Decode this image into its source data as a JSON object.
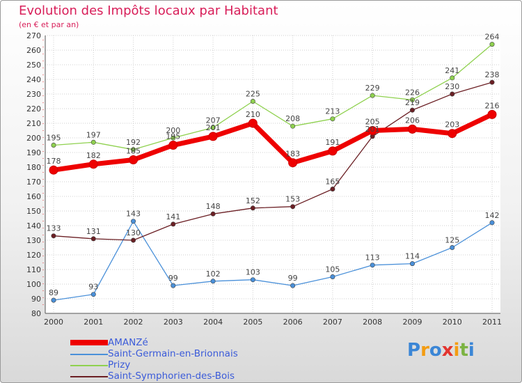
{
  "page": {
    "title": "Evolution des Impôts locaux par Habitant",
    "subtitle": "(en € et par an)"
  },
  "logo": {
    "text": "Proxiti",
    "colors": [
      "#3b86d6",
      "#f39c12",
      "#3b86d6",
      "#e3342f",
      "#f39c12",
      "#7cb342",
      "#3b86d6"
    ]
  },
  "chart_data": {
    "type": "line",
    "x": [
      "2000",
      "2001",
      "2002",
      "2003",
      "2004",
      "2005",
      "2006",
      "2007",
      "2008",
      "2009",
      "2010",
      "2011"
    ],
    "ylim": [
      80,
      270
    ],
    "yticks": [
      80,
      90,
      100,
      110,
      120,
      130,
      140,
      150,
      160,
      170,
      180,
      190,
      200,
      210,
      220,
      230,
      240,
      250,
      260,
      270
    ],
    "grid": true,
    "legend_position": "bottom-left",
    "series": [
      {
        "name": "AMANZé",
        "color": "#ee0000",
        "values": [
          178,
          182,
          185,
          195,
          201,
          210,
          183,
          191,
          205,
          206,
          203,
          216
        ],
        "width": 7,
        "radius": 6
      },
      {
        "name": "Saint-Germain-en-Brionnais",
        "color": "#4a90d9",
        "values": [
          89,
          93,
          143,
          99,
          102,
          103,
          99,
          105,
          113,
          114,
          125,
          142
        ],
        "width": 1.3,
        "radius": 3.2
      },
      {
        "name": "Prizy",
        "color": "#8fd14f",
        "values": [
          195,
          197,
          192,
          200,
          207,
          225,
          208,
          213,
          229,
          226,
          241,
          264
        ],
        "width": 1.3,
        "radius": 3.2
      },
      {
        "name": "Saint-Symphorien-des-Bois",
        "color": "#6b1f24",
        "values": [
          133,
          131,
          130,
          141,
          148,
          152,
          153,
          165,
          201,
          219,
          230,
          238
        ],
        "width": 1.3,
        "radius": 3.2
      }
    ]
  }
}
